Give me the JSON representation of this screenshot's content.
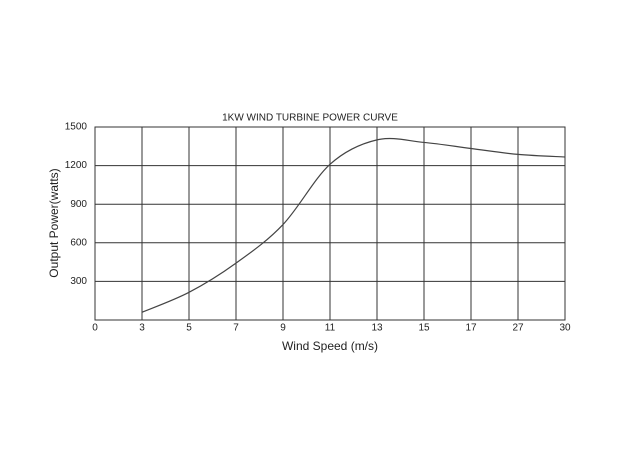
{
  "chart_data": {
    "type": "line",
    "title": "1KW WIND TURBINE POWER CURVE",
    "x_label": "Wind Speed (m/s)",
    "y_label": "Output Power(watts)",
    "categories": [
      "0",
      "3",
      "5",
      "7",
      "9",
      "11",
      "13",
      "15",
      "17",
      "27",
      "30"
    ],
    "values": [
      null,
      60,
      215,
      442,
      742,
      1210,
      1400,
      1380,
      1333,
      1287,
      1267
    ],
    "color": "#444444",
    "ylim": [
      0,
      1500
    ],
    "yticks": [
      300,
      600,
      900,
      1200,
      1500
    ],
    "grid": true
  }
}
